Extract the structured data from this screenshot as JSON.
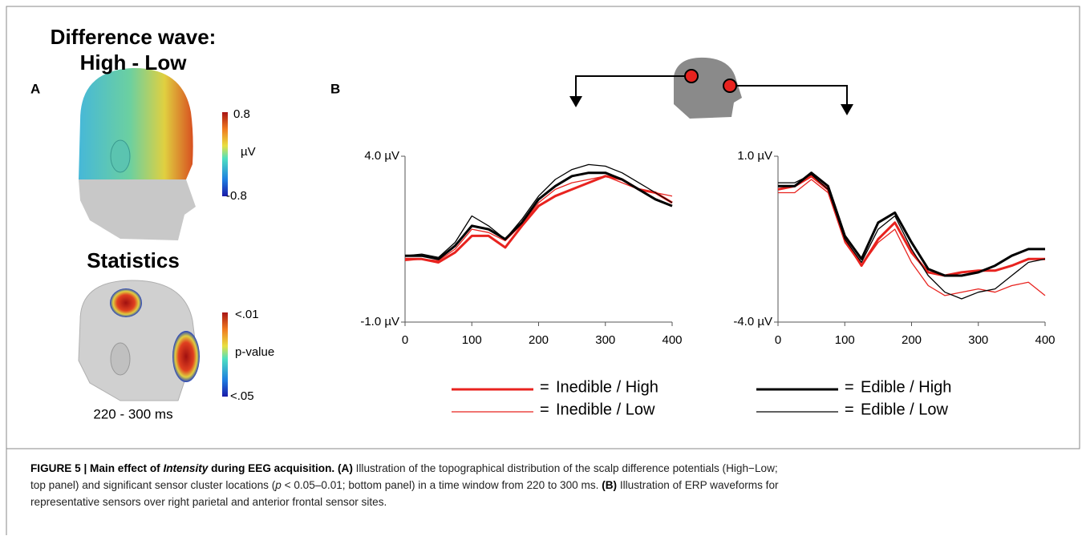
{
  "panel_a": {
    "label": "A",
    "title_line1": "Difference wave:",
    "title_line2": "High - Low",
    "colorbar1": {
      "max": "0.8",
      "unit": "µV",
      "min": "-0.8"
    },
    "stats_title": "Statistics",
    "colorbar2": {
      "max": "<.01",
      "unit": "p-value",
      "min": "<.05"
    },
    "time_window": "220 - 300 ms"
  },
  "panel_b": {
    "label": "B",
    "legend_sign": "="
  },
  "chart_data": [
    {
      "type": "line",
      "x": [
        0,
        25,
        50,
        75,
        100,
        125,
        150,
        175,
        200,
        225,
        250,
        275,
        300,
        325,
        350,
        375,
        400
      ],
      "xlim": [
        0,
        400
      ],
      "xticks": [
        0,
        100,
        200,
        300,
        400
      ],
      "ylim": [
        -1,
        4
      ],
      "yticks": [
        {
          "value": -1,
          "label": "-1.0 µV"
        },
        {
          "value": 4,
          "label": "4.0 µV"
        }
      ],
      "series": [
        {
          "name": "Inedible / High",
          "color": "#e8231f",
          "linewidth": 3,
          "values": [
            0.9,
            0.9,
            0.8,
            1.1,
            1.6,
            1.6,
            1.25,
            1.9,
            2.5,
            2.8,
            3.0,
            3.2,
            3.4,
            3.3,
            3.0,
            2.9,
            2.6
          ]
        },
        {
          "name": "Inedible / Low",
          "color": "#e8231f",
          "linewidth": 1.3,
          "values": [
            0.85,
            0.9,
            0.85,
            1.2,
            1.8,
            1.7,
            1.45,
            1.95,
            2.6,
            3.0,
            3.2,
            3.3,
            3.4,
            3.2,
            3.0,
            2.9,
            2.8
          ]
        },
        {
          "name": "Edible / High",
          "color": "#000000",
          "linewidth": 3,
          "values": [
            1.0,
            1.0,
            0.9,
            1.3,
            1.9,
            1.8,
            1.5,
            2.0,
            2.7,
            3.1,
            3.4,
            3.5,
            3.5,
            3.3,
            3.0,
            2.7,
            2.5
          ]
        },
        {
          "name": "Edible / Low",
          "color": "#000000",
          "linewidth": 1.3,
          "values": [
            1.0,
            1.05,
            0.95,
            1.4,
            2.2,
            1.9,
            1.5,
            2.1,
            2.8,
            3.3,
            3.6,
            3.75,
            3.7,
            3.5,
            3.2,
            2.9,
            2.6
          ]
        }
      ]
    },
    {
      "type": "line",
      "x": [
        0,
        25,
        50,
        75,
        100,
        125,
        150,
        175,
        200,
        225,
        250,
        275,
        300,
        325,
        350,
        375,
        400
      ],
      "xlim": [
        0,
        400
      ],
      "xticks": [
        0,
        100,
        200,
        300,
        400
      ],
      "ylim": [
        -4,
        1
      ],
      "yticks": [
        {
          "value": -4,
          "label": "-4.0 µV"
        },
        {
          "value": 1,
          "label": "1.0 µV"
        }
      ],
      "series": [
        {
          "name": "Inedible / High",
          "color": "#e8231f",
          "linewidth": 3,
          "values": [
            0.0,
            0.1,
            0.4,
            0.0,
            -1.5,
            -2.3,
            -1.5,
            -1.0,
            -1.9,
            -2.5,
            -2.6,
            -2.5,
            -2.45,
            -2.45,
            -2.3,
            -2.1,
            -2.1
          ]
        },
        {
          "name": "Inedible / Low",
          "color": "#e8231f",
          "linewidth": 1.3,
          "values": [
            -0.1,
            -0.1,
            0.3,
            -0.1,
            -1.6,
            -2.3,
            -1.6,
            -1.2,
            -2.2,
            -2.9,
            -3.2,
            -3.1,
            -3.0,
            -3.1,
            -2.9,
            -2.8,
            -3.2
          ]
        },
        {
          "name": "Edible / High",
          "color": "#000000",
          "linewidth": 3,
          "values": [
            0.1,
            0.1,
            0.5,
            0.1,
            -1.4,
            -2.1,
            -1.0,
            -0.7,
            -1.6,
            -2.4,
            -2.6,
            -2.6,
            -2.5,
            -2.3,
            -2.0,
            -1.8,
            -1.8
          ]
        },
        {
          "name": "Edible / Low",
          "color": "#000000",
          "linewidth": 1.3,
          "values": [
            0.2,
            0.2,
            0.45,
            0.0,
            -1.5,
            -2.2,
            -1.2,
            -0.8,
            -1.8,
            -2.6,
            -3.1,
            -3.3,
            -3.1,
            -3.0,
            -2.6,
            -2.2,
            -2.1
          ]
        }
      ]
    }
  ],
  "caption": [
    "FIGURE 5 | Main effect of ",
    "Intensity",
    " during EEG acquisition. ",
    "(A)",
    " Illustration of the topographical distribution of the scalp difference potentials (High−Low;",
    "top panel) and significant sensor cluster locations (",
    "p",
    " < 0.05–0.01; bottom panel) in a time window from 220 to 300 ms. ",
    "(B)",
    " Illustration of ERP waveforms for",
    "representative sensors over right parietal and anterior frontal sensor sites."
  ]
}
